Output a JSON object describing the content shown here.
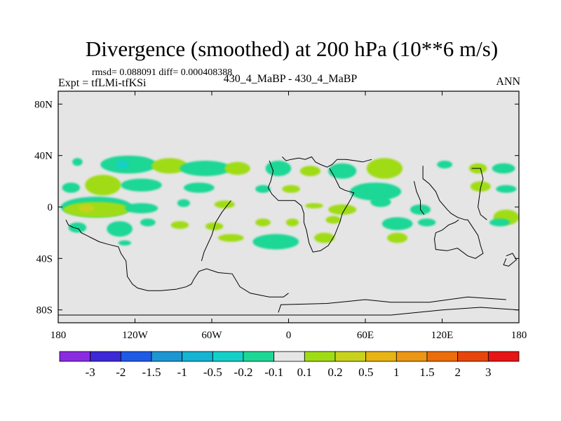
{
  "title": "Divergence (smoothed) at 200 hPa (10**6 m/s)",
  "stats": {
    "rmsd_label": "rmsd=",
    "rmsd": "0.088091",
    "diff_label": "diff=",
    "diff": "0.000408388"
  },
  "left_label": "Expt = tfLMi-tfKSi",
  "center_label": "430_4_MaBP - 430_4_MaBP",
  "right_label": "ANN",
  "chart_data": {
    "type": "heatmap",
    "title": "Divergence (smoothed) at 200 hPa (10**6 m/s)",
    "x_range": [
      -180,
      180
    ],
    "y_range": [
      -90,
      90
    ],
    "x_ticks": [
      {
        "value": -180,
        "label": "180"
      },
      {
        "value": -120,
        "label": "120W"
      },
      {
        "value": -60,
        "label": "60W"
      },
      {
        "value": 0,
        "label": "0"
      },
      {
        "value": 60,
        "label": "60E"
      },
      {
        "value": 120,
        "label": "120E"
      },
      {
        "value": 180,
        "label": "180"
      }
    ],
    "y_ticks": [
      {
        "value": 80,
        "label": "80N"
      },
      {
        "value": 40,
        "label": "40N"
      },
      {
        "value": 0,
        "label": "0"
      },
      {
        "value": -40,
        "label": "40S"
      },
      {
        "value": -80,
        "label": "80S"
      }
    ],
    "background_color": "#e5e5e5",
    "colorbar": {
      "colors": [
        "#8a2be2",
        "#3c28d6",
        "#1e5ae6",
        "#1e96d2",
        "#14b4d2",
        "#14d0c8",
        "#1ed796",
        "#e6e6e6",
        "#a0dc14",
        "#c8d21e",
        "#e6b414",
        "#eb9614",
        "#eb6e0a",
        "#e6460a",
        "#e61414"
      ],
      "labels": [
        "-3",
        "-2",
        "-1.5",
        "-1",
        "-0.5",
        "-0.2",
        "-0.1",
        "0.1",
        "0.2",
        "0.5",
        "1",
        "1.5",
        "2",
        "3"
      ]
    },
    "regions": [
      {
        "level": "-0.1",
        "lon": -165,
        "lat": 35,
        "rx": 4,
        "ry": 3
      },
      {
        "level": "-0.1",
        "lon": -125,
        "lat": 33,
        "rx": 22,
        "ry": 7
      },
      {
        "level": "-0.2",
        "lon": -130,
        "lat": 33,
        "rx": 5,
        "ry": 3
      },
      {
        "level": "0.1",
        "lon": -93,
        "lat": 32,
        "rx": 14,
        "ry": 6
      },
      {
        "level": "-0.1",
        "lon": -65,
        "lat": 30,
        "rx": 20,
        "ry": 6
      },
      {
        "level": "0.1",
        "lon": -40,
        "lat": 30,
        "rx": 10,
        "ry": 5
      },
      {
        "level": "-0.1",
        "lon": -8,
        "lat": 30,
        "rx": 10,
        "ry": 6
      },
      {
        "level": "0.1",
        "lon": 17,
        "lat": 28,
        "rx": 8,
        "ry": 4
      },
      {
        "level": "-0.1",
        "lon": 42,
        "lat": 28,
        "rx": 11,
        "ry": 6
      },
      {
        "level": "0.1",
        "lon": 75,
        "lat": 30,
        "rx": 14,
        "ry": 8
      },
      {
        "level": "-0.1",
        "lon": 122,
        "lat": 33,
        "rx": 6,
        "ry": 3
      },
      {
        "level": "0.1",
        "lon": 148,
        "lat": 30,
        "rx": 7,
        "ry": 4
      },
      {
        "level": "-0.1",
        "lon": 168,
        "lat": 30,
        "rx": 9,
        "ry": 4
      },
      {
        "level": "-0.1",
        "lon": -170,
        "lat": 15,
        "rx": 7,
        "ry": 4
      },
      {
        "level": "0.1",
        "lon": -145,
        "lat": 17,
        "rx": 14,
        "ry": 8
      },
      {
        "level": "-0.1",
        "lon": -115,
        "lat": 17,
        "rx": 16,
        "ry": 5
      },
      {
        "level": "-0.1",
        "lon": -70,
        "lat": 15,
        "rx": 12,
        "ry": 4
      },
      {
        "level": "-0.1",
        "lon": -20,
        "lat": 14,
        "rx": 6,
        "ry": 3
      },
      {
        "level": "0.1",
        "lon": 2,
        "lat": 14,
        "rx": 7,
        "ry": 3
      },
      {
        "level": "-0.1",
        "lon": 68,
        "lat": 12,
        "rx": 20,
        "ry": 7
      },
      {
        "level": "0.1",
        "lon": 150,
        "lat": 16,
        "rx": 8,
        "ry": 4
      },
      {
        "level": "-0.1",
        "lon": 170,
        "lat": 14,
        "rx": 8,
        "ry": 3
      },
      {
        "level": "-0.1",
        "lon": -150,
        "lat": 0,
        "rx": 28,
        "ry": 8
      },
      {
        "level": "0.1",
        "lon": -150,
        "lat": -2,
        "rx": 26,
        "ry": 6
      },
      {
        "level": "0.2",
        "lon": -158,
        "lat": -1,
        "rx": 6,
        "ry": 3
      },
      {
        "level": "-0.1",
        "lon": -115,
        "lat": -1,
        "rx": 13,
        "ry": 4
      },
      {
        "level": "-0.1",
        "lon": -82,
        "lat": 3,
        "rx": 5,
        "ry": 3
      },
      {
        "level": "0.1",
        "lon": -50,
        "lat": 2,
        "rx": 8,
        "ry": 3
      },
      {
        "level": "0.1",
        "lon": 20,
        "lat": 1,
        "rx": 7,
        "ry": 2
      },
      {
        "level": "0.1",
        "lon": 42,
        "lat": -2,
        "rx": 11,
        "ry": 4
      },
      {
        "level": "-0.1",
        "lon": 72,
        "lat": 4,
        "rx": 8,
        "ry": 4
      },
      {
        "level": "-0.1",
        "lon": 103,
        "lat": -2,
        "rx": 8,
        "ry": 4
      },
      {
        "level": "0.1",
        "lon": 170,
        "lat": -8,
        "rx": 10,
        "ry": 6
      },
      {
        "level": "-0.1",
        "lon": -165,
        "lat": -16,
        "rx": 7,
        "ry": 4
      },
      {
        "level": "-0.1",
        "lon": -132,
        "lat": -17,
        "rx": 10,
        "ry": 6
      },
      {
        "level": "-0.1",
        "lon": -110,
        "lat": -12,
        "rx": 6,
        "ry": 3
      },
      {
        "level": "0.1",
        "lon": -85,
        "lat": -14,
        "rx": 7,
        "ry": 3
      },
      {
        "level": "0.1",
        "lon": -58,
        "lat": -15,
        "rx": 7,
        "ry": 3
      },
      {
        "level": "0.1",
        "lon": -20,
        "lat": -12,
        "rx": 6,
        "ry": 3
      },
      {
        "level": "0.1",
        "lon": 3,
        "lat": -12,
        "rx": 5,
        "ry": 3
      },
      {
        "level": "0.1",
        "lon": 35,
        "lat": -10,
        "rx": 6,
        "ry": 3
      },
      {
        "level": "-0.1",
        "lon": 85,
        "lat": -13,
        "rx": 12,
        "ry": 5
      },
      {
        "level": "-0.1",
        "lon": 108,
        "lat": -12,
        "rx": 7,
        "ry": 3
      },
      {
        "level": "-0.1",
        "lon": 165,
        "lat": -12,
        "rx": 8,
        "ry": 3
      },
      {
        "level": "-0.1",
        "lon": -128,
        "lat": -28,
        "rx": 5,
        "ry": 2
      },
      {
        "level": "0.1",
        "lon": -45,
        "lat": -24,
        "rx": 10,
        "ry": 3
      },
      {
        "level": "-0.1",
        "lon": -10,
        "lat": -27,
        "rx": 18,
        "ry": 6
      },
      {
        "level": "0.1",
        "lon": 28,
        "lat": -24,
        "rx": 8,
        "ry": 4
      },
      {
        "level": "0.1",
        "lon": 85,
        "lat": -24,
        "rx": 8,
        "ry": 4
      }
    ],
    "coastlines": [
      [
        [
          -174,
          -10
        ],
        [
          -172,
          -14
        ],
        [
          -168,
          -16
        ],
        [
          -164,
          -17
        ],
        [
          -162,
          -20
        ],
        [
          -158,
          -22
        ],
        [
          -154,
          -24
        ],
        [
          -148,
          -27
        ],
        [
          -141,
          -29
        ],
        [
          -133,
          -31
        ],
        [
          -131,
          -36
        ],
        [
          -127,
          -42
        ],
        [
          -126,
          -54
        ],
        [
          -122,
          -60
        ],
        [
          -118,
          -63
        ],
        [
          -110,
          -65
        ],
        [
          -100,
          -65
        ],
        [
          -88,
          -64
        ],
        [
          -80,
          -62
        ],
        [
          -76,
          -60
        ],
        [
          -74,
          -56
        ],
        [
          -70,
          -50
        ],
        [
          -64,
          -48
        ],
        [
          -55,
          -51
        ],
        [
          -44,
          -52
        ],
        [
          -38,
          -62
        ],
        [
          -30,
          -67
        ],
        [
          -15,
          -70
        ],
        [
          -4,
          -70
        ],
        [
          0,
          -67
        ]
      ],
      [
        [
          -180,
          -84
        ],
        [
          -140,
          -84
        ],
        [
          -70,
          -84
        ],
        [
          -30,
          -84
        ],
        [
          0,
          -84
        ],
        [
          40,
          -84
        ],
        [
          80,
          -84
        ],
        [
          120,
          -80
        ],
        [
          150,
          -78
        ],
        [
          180,
          -80
        ]
      ],
      [
        [
          -8,
          -82
        ],
        [
          -6,
          -76
        ],
        [
          30,
          -75
        ],
        [
          60,
          -72
        ],
        [
          80,
          -74
        ],
        [
          110,
          -74
        ],
        [
          140,
          -70
        ],
        [
          170,
          -72
        ]
      ],
      [
        [
          -5,
          39
        ],
        [
          -2,
          36
        ],
        [
          2,
          37
        ],
        [
          8,
          38
        ],
        [
          13,
          37
        ],
        [
          18,
          39
        ],
        [
          21,
          35
        ],
        [
          25,
          33
        ],
        [
          30,
          31
        ],
        [
          34,
          33
        ],
        [
          38,
          37
        ],
        [
          45,
          37
        ],
        [
          52,
          36
        ],
        [
          58,
          35
        ],
        [
          65,
          37
        ]
      ],
      [
        [
          -15,
          36
        ],
        [
          -12,
          28
        ],
        [
          -14,
          20
        ],
        [
          -16,
          15
        ],
        [
          -13,
          10
        ],
        [
          -8,
          5
        ],
        [
          -2,
          5
        ],
        [
          5,
          5
        ],
        [
          10,
          1
        ],
        [
          12,
          -5
        ],
        [
          12,
          -12
        ],
        [
          14,
          -18
        ],
        [
          16,
          -28
        ],
        [
          19,
          -35
        ],
        [
          25,
          -34
        ],
        [
          31,
          -30
        ],
        [
          36,
          -22
        ],
        [
          40,
          -12
        ],
        [
          42,
          -5
        ],
        [
          48,
          5
        ],
        [
          51,
          11
        ],
        [
          44,
          13
        ],
        [
          40,
          15
        ],
        [
          35,
          25
        ],
        [
          32,
          30
        ]
      ],
      [
        [
          -45,
          5
        ],
        [
          -52,
          -4
        ],
        [
          -57,
          -12
        ],
        [
          -60,
          -22
        ],
        [
          -66,
          -35
        ],
        [
          -68,
          -42
        ]
      ],
      [
        [
          105,
          32
        ],
        [
          105,
          22
        ],
        [
          110,
          18
        ],
        [
          115,
          12
        ],
        [
          118,
          5
        ],
        [
          124,
          -2
        ],
        [
          127,
          -5
        ],
        [
          132,
          -8
        ],
        [
          138,
          -10
        ],
        [
          140,
          -10
        ],
        [
          144,
          -16
        ],
        [
          148,
          -22
        ],
        [
          150,
          -30
        ],
        [
          152,
          -36
        ],
        [
          146,
          -40
        ],
        [
          140,
          -38
        ],
        [
          132,
          -32
        ],
        [
          124,
          -34
        ],
        [
          115,
          -33
        ],
        [
          114,
          -25
        ],
        [
          115,
          -20
        ],
        [
          120,
          -18
        ],
        [
          125,
          -14
        ],
        [
          130,
          -12
        ],
        [
          133,
          -10
        ]
      ],
      [
        [
          98,
          20
        ],
        [
          100,
          12
        ],
        [
          103,
          5
        ],
        [
          103,
          -2
        ],
        [
          106,
          -6
        ]
      ],
      [
        [
          143,
          30
        ],
        [
          150,
          30
        ],
        [
          152,
          22
        ],
        [
          150,
          15
        ],
        [
          148,
          0
        ],
        [
          150,
          -6
        ],
        [
          155,
          -10
        ]
      ],
      [
        [
          170,
          -38
        ],
        [
          175,
          -36
        ],
        [
          178,
          -41
        ],
        [
          172,
          -46
        ],
        [
          168,
          -45
        ],
        [
          170,
          -40
        ]
      ]
    ]
  }
}
